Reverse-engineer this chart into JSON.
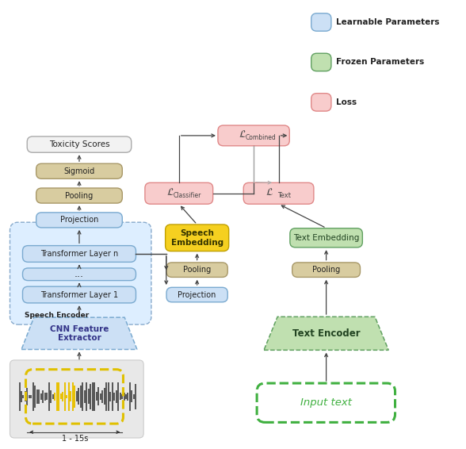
{
  "fig_width": 5.88,
  "fig_height": 5.66,
  "bg_color": "#ffffff",
  "colors": {
    "blue_box": "#cce0f5",
    "blue_border": "#7aaad0",
    "green_box": "#c0e0b0",
    "green_border": "#60a060",
    "pink_box": "#f8cccc",
    "pink_border": "#e08888",
    "tan_box": "#d8cca0",
    "tan_border": "#a89868",
    "white_box": "#f2f2f2",
    "white_border": "#aaaaaa",
    "yellow_box": "#f5d020",
    "yellow_border": "#c0a000",
    "speech_enc_bg": "#ddeeff",
    "speech_enc_border": "#88aacc",
    "wave_bg": "#e8e8e8",
    "wave_border": "#cccccc",
    "arrow_color": "#444444",
    "dashed_yellow": "#e0c000",
    "dashed_green": "#40b040"
  },
  "legend": {
    "items": [
      {
        "label": "Learnable Parameters",
        "color": "#cce0f5",
        "border": "#7aaad0"
      },
      {
        "label": "Frozen Parameters",
        "color": "#c0e0b0",
        "border": "#60a060"
      },
      {
        "label": "Loss",
        "color": "#f8cccc",
        "border": "#e08888"
      }
    ]
  }
}
